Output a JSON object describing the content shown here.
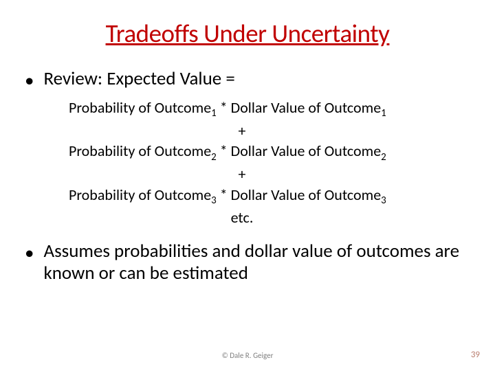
{
  "title": "Tradeoffs Under Uncertainty",
  "bullets": {
    "review": {
      "text": "Review:  Expected Value ="
    },
    "assumes": {
      "text": "Assumes probabilities and dollar value of outcomes are known or can be estimated"
    }
  },
  "formula": {
    "line1_a": "Probability of Outcome",
    "line1_b": " * Dollar Value of Outcome",
    "sub1": "1",
    "plus": "+",
    "line2_a": "Probability of Outcome",
    "line2_b": " * Dollar Value of Outcome",
    "sub2": "2",
    "line3_a": "Probability of Outcome",
    "line3_b": " * Dollar Value of Outcome",
    "sub3": "3",
    "etc": "etc."
  },
  "footer": {
    "copyright": "© Dale R. Geiger",
    "page": "39"
  },
  "colors": {
    "title_color": "#c00000",
    "text_color": "#000000",
    "footer_color": "#7f7f7f",
    "pagenum_color": "#b97d6f",
    "background": "#ffffff"
  },
  "fonts": {
    "title_size": 37,
    "bullet_size": 27,
    "formula_size": 22,
    "subscript_size": 15,
    "footer_size": 11,
    "pagenum_size": 13
  }
}
